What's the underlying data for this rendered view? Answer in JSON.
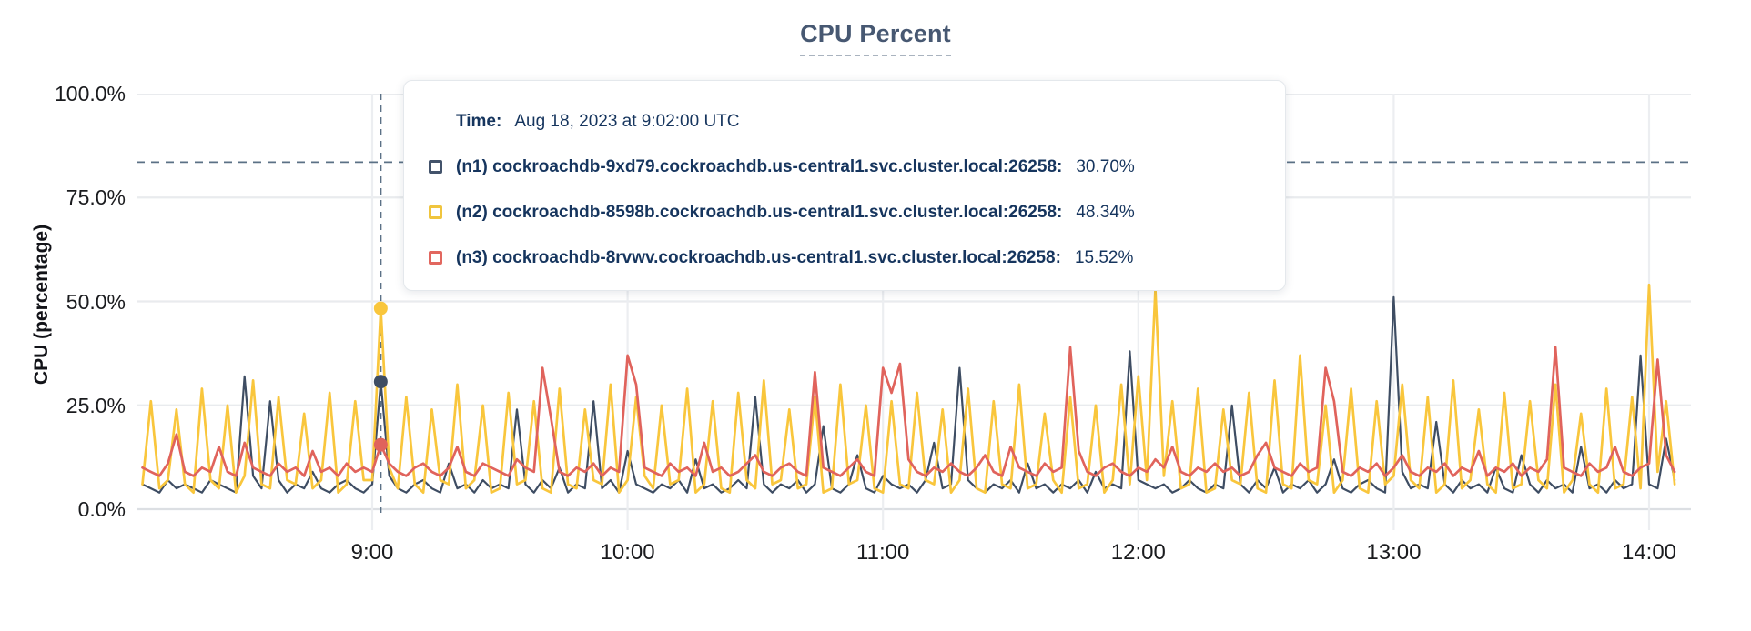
{
  "title": "CPU Percent",
  "y_axis": {
    "title": "CPU (percentage)",
    "ticks": [
      "100.0%",
      "75.0%",
      "50.0%",
      "25.0%",
      "0.0%"
    ],
    "tick_percents": [
      100,
      75,
      50,
      25,
      0
    ]
  },
  "x_axis": {
    "ticks": [
      "9:00",
      "10:00",
      "11:00",
      "12:00",
      "13:00",
      "14:00"
    ]
  },
  "tooltip": {
    "time_label": "Time:",
    "time_value": "Aug 18, 2023 at 9:02:00 UTC",
    "rows": [
      {
        "id": "n1",
        "label": "(n1) cockroachdb-9xd79.cockroachdb.us-central1.svc.cluster.local:26258:",
        "value": "30.70%",
        "color": "#43536B"
      },
      {
        "id": "n2",
        "label": "(n2) cockroachdb-8598b.cockroachdb.us-central1.svc.cluster.local:26258:",
        "value": "48.34%",
        "color": "#F0C53E"
      },
      {
        "id": "n3",
        "label": "(n3) cockroachdb-8rvwv.cockroachdb.us-central1.svc.cluster.local:26258:",
        "value": "15.52%",
        "color": "#E2675F"
      }
    ]
  },
  "colors": {
    "grid": "#E9EBEE",
    "grid_baseline": "#DCDFE3",
    "dashed_guide": "#5B7186",
    "title_text": "#475872",
    "tooltip_text": "#16355E",
    "axis_text": "#1A1B1E"
  },
  "chart_data": {
    "type": "line",
    "title": "CPU Percent",
    "xlabel": "",
    "ylabel": "CPU (percentage)",
    "ylim": [
      0,
      100
    ],
    "y_tick_percents": [
      0,
      25,
      50,
      75,
      100
    ],
    "x_tick_labels": [
      "9:00",
      "10:00",
      "11:00",
      "12:00",
      "13:00",
      "14:00"
    ],
    "x_start_minutes": 486,
    "x_step_minutes": 2,
    "x_start_label": "8:06",
    "x_end_label": "14:06",
    "grid": true,
    "legend_position": "tooltip",
    "threshold_percent": 83.5,
    "hover": {
      "time": "Aug 18, 2023 at 9:02:00 UTC",
      "minutes": 542,
      "values": {
        "n1": 30.7,
        "n2": 48.34,
        "n3": 15.52
      }
    },
    "series": [
      {
        "id": "n1",
        "name": "(n1) cockroachdb-9xd79.cockroachdb.us-central1.svc.cluster.local:26258",
        "color": "#3E4D63",
        "values": [
          6,
          5,
          4,
          7,
          5,
          6,
          5,
          4,
          7,
          6,
          5,
          4,
          32,
          8,
          5,
          26,
          7,
          4,
          6,
          5,
          9,
          5,
          4,
          6,
          7,
          5,
          4,
          6,
          30.7,
          8,
          5,
          4,
          6,
          7,
          5,
          4,
          11,
          5,
          6,
          4,
          7,
          5,
          6,
          5,
          24,
          6,
          4,
          7,
          5,
          10,
          4,
          6,
          5,
          26,
          5,
          7,
          4,
          14,
          6,
          5,
          4,
          6,
          5,
          7,
          4,
          12,
          5,
          6,
          4,
          5,
          7,
          5,
          27,
          6,
          4,
          6,
          5,
          7,
          4,
          6,
          20,
          5,
          4,
          6,
          13,
          5,
          4,
          8,
          6,
          5,
          6,
          4,
          7,
          16,
          5,
          6,
          34,
          7,
          5,
          4,
          6,
          5,
          7,
          4,
          11,
          5,
          6,
          4,
          6,
          5,
          7,
          4,
          9,
          5,
          6,
          5,
          38,
          7,
          6,
          5,
          6,
          4,
          5,
          7,
          5,
          4,
          6,
          5,
          25,
          6,
          4,
          7,
          5,
          10,
          4,
          6,
          5,
          7,
          4,
          6,
          12,
          5,
          4,
          6,
          7,
          5,
          4,
          51,
          9,
          5,
          6,
          5,
          21,
          6,
          4,
          7,
          5,
          6,
          4,
          10,
          5,
          4,
          13,
          6,
          4,
          7,
          5,
          6,
          4,
          15,
          5,
          6,
          4,
          7,
          5,
          6,
          37,
          6,
          5,
          17,
          7
        ]
      },
      {
        "id": "n2",
        "name": "(n2) cockroachdb-8598b.cockroachdb.us-central1.svc.cluster.local:26258",
        "color": "#F9C63C",
        "values": [
          6,
          26,
          5,
          7,
          24,
          6,
          4,
          29,
          7,
          5,
          25,
          4,
          8,
          31,
          6,
          5,
          27,
          7,
          6,
          23,
          5,
          7,
          28,
          4,
          6,
          26,
          7,
          7,
          48.34,
          10,
          5,
          27,
          6,
          4,
          24,
          7,
          6,
          30,
          5,
          7,
          25,
          4,
          5,
          28,
          6,
          7,
          26,
          5,
          4,
          29,
          6,
          5,
          24,
          7,
          6,
          30,
          4,
          7,
          27,
          8,
          5,
          25,
          6,
          7,
          29,
          4,
          6,
          26,
          5,
          4,
          28,
          7,
          5,
          31,
          6,
          7,
          24,
          5,
          6,
          27,
          4,
          5,
          30,
          6,
          7,
          25,
          5,
          4,
          26,
          6,
          5,
          28,
          7,
          6,
          24,
          4,
          7,
          29,
          5,
          4,
          26,
          6,
          5,
          30,
          5,
          6,
          23,
          7,
          4,
          27,
          5,
          6,
          25,
          4,
          7,
          30,
          6,
          32,
          7,
          53,
          8,
          26,
          5,
          6,
          29,
          4,
          5,
          24,
          7,
          6,
          28,
          5,
          4,
          31,
          6,
          5,
          37,
          7,
          6,
          25,
          4,
          7,
          29,
          5,
          4,
          26,
          6,
          8,
          30,
          7,
          5,
          27,
          4,
          6,
          31,
          5,
          7,
          24,
          6,
          4,
          28,
          5,
          6,
          26,
          7,
          5,
          30,
          4,
          7,
          23,
          6,
          4,
          29,
          5,
          6,
          27,
          5,
          54,
          9,
          26,
          6
        ]
      },
      {
        "id": "n3",
        "name": "(n3) cockroachdb-8rvwv.cockroachdb.us-central1.svc.cluster.local:26258",
        "color": "#E0635C",
        "values": [
          10,
          9,
          8,
          11,
          18,
          9,
          8,
          10,
          9,
          15,
          9,
          8,
          16,
          10,
          9,
          8,
          11,
          9,
          10,
          8,
          14,
          9,
          10,
          8,
          11,
          9,
          10,
          9,
          15.52,
          11,
          9,
          8,
          10,
          11,
          9,
          8,
          10,
          15,
          9,
          8,
          11,
          10,
          9,
          8,
          12,
          10,
          9,
          34,
          22,
          9,
          8,
          10,
          9,
          11,
          8,
          10,
          9,
          37,
          30,
          10,
          9,
          8,
          11,
          9,
          10,
          8,
          16,
          9,
          10,
          8,
          9,
          11,
          13,
          9,
          8,
          10,
          11,
          9,
          8,
          33,
          10,
          9,
          8,
          10,
          12,
          9,
          8,
          34,
          28,
          35,
          12,
          9,
          8,
          10,
          9,
          11,
          9,
          8,
          10,
          13,
          9,
          8,
          15,
          10,
          9,
          8,
          11,
          9,
          10,
          39,
          14,
          9,
          8,
          10,
          11,
          9,
          8,
          10,
          9,
          12,
          10,
          15,
          9,
          8,
          10,
          9,
          11,
          9,
          10,
          8,
          9,
          13,
          16,
          10,
          9,
          8,
          11,
          9,
          10,
          34,
          26,
          9,
          8,
          10,
          9,
          11,
          8,
          10,
          13,
          9,
          8,
          10,
          9,
          11,
          8,
          10,
          9,
          14,
          8,
          10,
          9,
          11,
          8,
          10,
          9,
          12,
          39,
          10,
          9,
          8,
          11,
          9,
          10,
          15,
          9,
          8,
          10,
          11,
          36,
          13,
          9
        ]
      }
    ]
  }
}
